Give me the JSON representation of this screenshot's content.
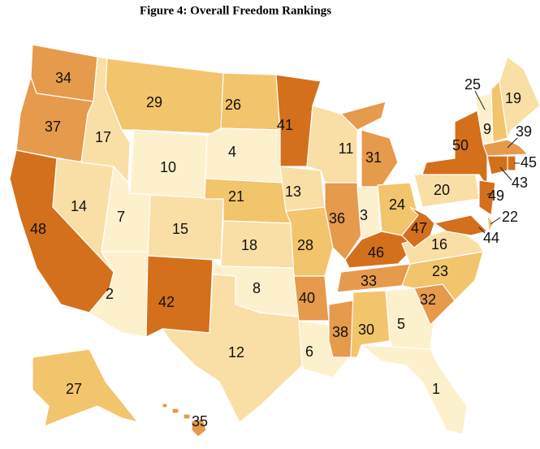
{
  "title": "Figure 4: Overall Freedom Rankings",
  "regions": [
    {
      "rank": 34,
      "color": "#e69a4b"
    },
    {
      "rank": 37,
      "color": "#e69a4b"
    },
    {
      "rank": 48,
      "color": "#d46f1c"
    },
    {
      "rank": 14,
      "color": "#f9dfa5"
    },
    {
      "rank": 17,
      "color": "#f9dfa5"
    },
    {
      "rank": 29,
      "color": "#f2c46c"
    },
    {
      "rank": 10,
      "color": "#fdf0cc"
    },
    {
      "rank": 7,
      "color": "#fdf0cc"
    },
    {
      "rank": 2,
      "color": "#fdf0cc"
    },
    {
      "rank": 15,
      "color": "#f9dfa5"
    },
    {
      "rank": 42,
      "color": "#d46f1c"
    },
    {
      "rank": 26,
      "color": "#f2c46c"
    },
    {
      "rank": 4,
      "color": "#fdf0cc"
    },
    {
      "rank": 21,
      "color": "#f2c46c"
    },
    {
      "rank": 18,
      "color": "#f9dfa5"
    },
    {
      "rank": 8,
      "color": "#fdf0cc"
    },
    {
      "rank": 12,
      "color": "#f9dfa5"
    },
    {
      "rank": 41,
      "color": "#d46f1c"
    },
    {
      "rank": 13,
      "color": "#f9dfa5"
    },
    {
      "rank": 28,
      "color": "#f2c46c"
    },
    {
      "rank": 40,
      "color": "#e69a4b"
    },
    {
      "rank": 6,
      "color": "#fdf0cc"
    },
    {
      "rank": 11,
      "color": "#f9dfa5"
    },
    {
      "rank": 36,
      "color": "#e69a4b"
    },
    {
      "rank": 38,
      "color": "#e69a4b"
    },
    {
      "rank": 31,
      "color": "#e69a4b"
    },
    {
      "rank": 3,
      "color": "#fdf0cc"
    },
    {
      "rank": 24,
      "color": "#f2c46c"
    },
    {
      "rank": 46,
      "color": "#d46f1c"
    },
    {
      "rank": 33,
      "color": "#e69a4b"
    },
    {
      "rank": 30,
      "color": "#f2c46c"
    },
    {
      "rank": 5,
      "color": "#fdf0cc"
    },
    {
      "rank": 1,
      "color": "#fdf0cc"
    },
    {
      "rank": 32,
      "color": "#e69a4b"
    },
    {
      "rank": 23,
      "color": "#f2c46c"
    },
    {
      "rank": 16,
      "color": "#f9dfa5"
    },
    {
      "rank": 47,
      "color": "#d46f1c"
    },
    {
      "rank": 20,
      "color": "#f9dfa5"
    },
    {
      "rank": 50,
      "color": "#d46f1c"
    },
    {
      "rank": 9,
      "color": "#fdf0cc"
    },
    {
      "rank": 25,
      "color": "#f2c46c"
    },
    {
      "rank": 19,
      "color": "#f9dfa5"
    },
    {
      "rank": 39,
      "color": "#e69a4b"
    },
    {
      "rank": 45,
      "color": "#d46f1c"
    },
    {
      "rank": 43,
      "color": "#d46f1c"
    },
    {
      "rank": 49,
      "color": "#d46f1c"
    },
    {
      "rank": 22,
      "color": "#f2c46c"
    },
    {
      "rank": 44,
      "color": "#d46f1c"
    },
    {
      "rank": 27,
      "color": "#f2c46c"
    },
    {
      "rank": 35,
      "color": "#e69a4b"
    }
  ]
}
